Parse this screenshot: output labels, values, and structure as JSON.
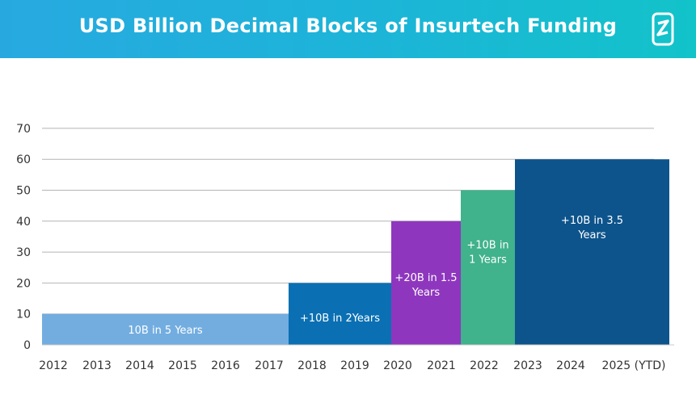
{
  "title": "USD Billion Decimal Blocks of Insurtech Funding",
  "chart_data": {
    "type": "bar",
    "title": "USD Billion Decimal Blocks of Insurtech Funding",
    "categories": [
      "2012",
      "2013",
      "2014",
      "2015",
      "2016",
      "2017",
      "2018",
      "2019",
      "2020",
      "2021",
      "2022",
      "2023",
      "2024",
      "2025 (YTD)"
    ],
    "ylim": [
      0,
      70
    ],
    "yticks": [
      0,
      10,
      20,
      30,
      40,
      50,
      60,
      70
    ],
    "grid": true,
    "blocks": [
      {
        "value": 10,
        "label": [
          "10B in 5 Years"
        ],
        "color": "#73ade0",
        "start_year": "2012",
        "end_year": "2017"
      },
      {
        "value": 20,
        "label": [
          "+10B in 2Years"
        ],
        "color": "#0a70b3",
        "start_year": "2018",
        "end_year": "2019"
      },
      {
        "value": 40,
        "label": [
          "+20B in 1.5",
          "Years"
        ],
        "color": "#8e37be",
        "start_year": "2020",
        "end_year": "2021"
      },
      {
        "value": 50,
        "label": [
          "+10B in",
          "1 Years"
        ],
        "color": "#40b28c",
        "start_year": "2022",
        "end_year": "2022"
      },
      {
        "value": 60,
        "label": [
          "+10B in 3.5",
          "Years"
        ],
        "color": "#0d548c",
        "start_year": "2023",
        "end_year": "2025 (YTD)"
      }
    ]
  }
}
